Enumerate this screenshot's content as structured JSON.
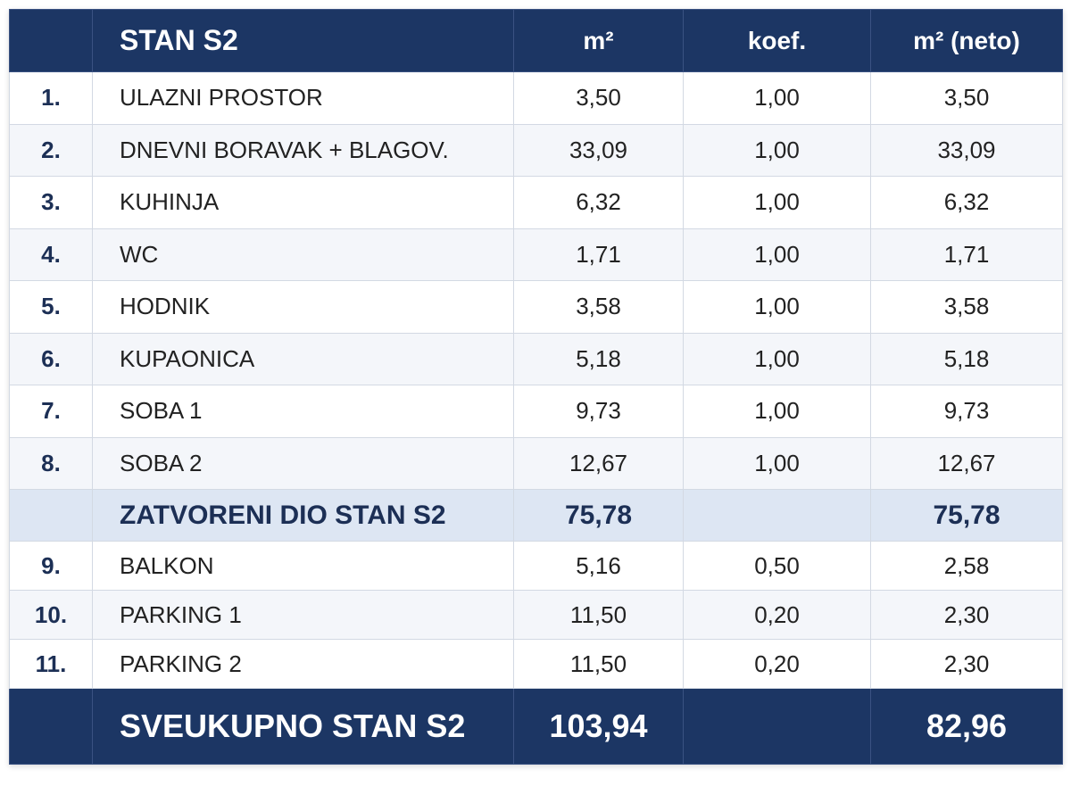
{
  "header": {
    "title": "STAN S2",
    "columns": [
      "m²",
      "koef.",
      "m² (neto)"
    ]
  },
  "rows": [
    {
      "num": "1.",
      "name": "ULAZNI PROSTOR",
      "area": "3,50",
      "coef": "1,00",
      "net": "3,50"
    },
    {
      "num": "2.",
      "name": "DNEVNI BORAVAK + BLAGOV.",
      "area": "33,09",
      "coef": "1,00",
      "net": "33,09"
    },
    {
      "num": "3.",
      "name": "KUHINJA",
      "area": "6,32",
      "coef": "1,00",
      "net": "6,32"
    },
    {
      "num": "4.",
      "name": "WC",
      "area": "1,71",
      "coef": "1,00",
      "net": "1,71"
    },
    {
      "num": "5.",
      "name": "HODNIK",
      "area": "3,58",
      "coef": "1,00",
      "net": "3,58"
    },
    {
      "num": "6.",
      "name": "KUPAONICA",
      "area": "5,18",
      "coef": "1,00",
      "net": "5,18"
    },
    {
      "num": "7.",
      "name": "SOBA 1",
      "area": "9,73",
      "coef": "1,00",
      "net": "9,73"
    },
    {
      "num": "8.",
      "name": "SOBA 2",
      "area": "12,67",
      "coef": "1,00",
      "net": "12,67"
    }
  ],
  "subtotal": {
    "label": "ZATVORENI DIO STAN S2",
    "area": "75,78",
    "net": "75,78"
  },
  "rows_extra": [
    {
      "num": "9.",
      "name": "BALKON",
      "area": "5,16",
      "coef": "0,50",
      "net": "2,58"
    },
    {
      "num": "10.",
      "name": "PARKING 1",
      "area": "11,50",
      "coef": "0,20",
      "net": "2,30"
    },
    {
      "num": "11.",
      "name": "PARKING 2",
      "area": "11,50",
      "coef": "0,20",
      "net": "2,30"
    }
  ],
  "total": {
    "label": "SVEUKUPNO STAN S2",
    "area": "103,94",
    "net": "82,96"
  }
}
